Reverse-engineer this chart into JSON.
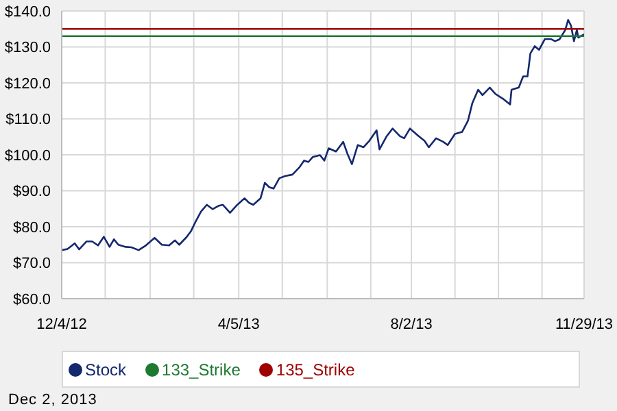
{
  "chart_data": {
    "type": "line",
    "x": [
      "2012-12-04",
      "2012-12-08",
      "2012-12-13",
      "2012-12-16",
      "2012-12-21",
      "2012-12-25",
      "2012-12-29",
      "2013-01-02",
      "2013-01-06",
      "2013-01-09",
      "2013-01-12",
      "2013-01-17",
      "2013-01-21",
      "2013-01-26",
      "2013-01-31",
      "2013-02-06",
      "2013-02-11",
      "2013-02-16",
      "2013-02-20",
      "2013-02-23",
      "2013-02-28",
      "2013-03-03",
      "2013-03-06",
      "2013-03-10",
      "2013-03-14",
      "2013-03-18",
      "2013-03-22",
      "2013-03-25",
      "2013-03-30",
      "2013-04-04",
      "2013-04-09",
      "2013-04-12",
      "2013-04-15",
      "2013-04-20",
      "2013-04-23",
      "2013-04-26",
      "2013-04-29",
      "2013-05-03",
      "2013-05-07",
      "2013-05-12",
      "2013-05-17",
      "2013-05-20",
      "2013-05-23",
      "2013-05-26",
      "2013-05-31",
      "2013-06-03",
      "2013-06-06",
      "2013-06-11",
      "2013-06-16",
      "2013-06-19",
      "2013-06-22",
      "2013-06-26",
      "2013-06-30",
      "2013-07-04",
      "2013-07-09",
      "2013-07-11",
      "2013-07-16",
      "2013-07-20",
      "2013-07-25",
      "2013-07-28",
      "2013-08-01",
      "2013-08-07",
      "2013-08-11",
      "2013-08-14",
      "2013-08-19",
      "2013-08-24",
      "2013-08-27",
      "2013-09-01",
      "2013-09-06",
      "2013-09-10",
      "2013-09-13",
      "2013-09-17",
      "2013-09-20",
      "2013-09-25",
      "2013-09-29",
      "2013-10-04",
      "2013-10-09",
      "2013-10-10",
      "2013-10-15",
      "2013-10-18",
      "2013-10-21",
      "2013-10-23",
      "2013-10-26",
      "2013-10-29",
      "2013-11-02",
      "2013-11-06",
      "2013-11-09",
      "2013-11-12",
      "2013-11-16",
      "2013-11-18",
      "2013-11-20",
      "2013-11-22",
      "2013-11-24",
      "2013-11-25",
      "2013-11-29"
    ],
    "series": [
      {
        "name": "Stock",
        "color": "#14286e",
        "values": [
          73.5,
          73.8,
          75.4,
          73.7,
          75.9,
          75.9,
          74.8,
          77.2,
          74.4,
          76.5,
          75.0,
          74.4,
          74.3,
          73.5,
          74.8,
          76.9,
          75.0,
          74.8,
          76.2,
          75.0,
          77.1,
          78.7,
          81.2,
          84.2,
          86.1,
          84.9,
          85.8,
          86.1,
          83.9,
          86.1,
          87.9,
          86.7,
          86.1,
          87.9,
          92.2,
          91.0,
          90.6,
          93.5,
          94.1,
          94.5,
          96.6,
          98.4,
          98.0,
          99.4,
          99.9,
          98.4,
          101.8,
          100.9,
          103.6,
          100.2,
          97.4,
          102.7,
          102.1,
          103.9,
          106.8,
          101.5,
          105.2,
          107.3,
          105.2,
          104.6,
          107.3,
          105.2,
          103.9,
          102.1,
          104.6,
          103.6,
          102.7,
          105.8,
          106.4,
          109.5,
          114.4,
          118.1,
          116.6,
          118.7,
          116.9,
          115.6,
          114.0,
          118.1,
          118.7,
          121.8,
          121.8,
          128.2,
          130.2,
          129.2,
          132.2,
          132.2,
          131.6,
          132.1,
          134.7,
          137.5,
          135.9,
          131.6,
          134.7,
          132.6,
          133.5
        ]
      },
      {
        "name": "133_Strike",
        "color": "#1e7a30",
        "x": [
          "2012-12-04",
          "2013-11-29"
        ],
        "values": [
          133,
          133
        ]
      },
      {
        "name": "135_Strike",
        "color": "#a00000",
        "x": [
          "2012-12-04",
          "2013-11-29"
        ],
        "values": [
          135,
          135
        ]
      }
    ],
    "xlim": [
      "2012-12-04",
      "2013-11-29"
    ],
    "xticks": [
      {
        "value": "2012-12-04",
        "label": "12/4/12"
      },
      {
        "value": "2013-01-03",
        "label": null
      },
      {
        "value": "2013-02-03",
        "label": null
      },
      {
        "value": "2013-03-05",
        "label": null
      },
      {
        "value": "2013-04-05",
        "label": "4/5/13"
      },
      {
        "value": "2013-05-05",
        "label": null
      },
      {
        "value": "2013-06-05",
        "label": null
      },
      {
        "value": "2013-07-05",
        "label": null
      },
      {
        "value": "2013-08-02",
        "label": "8/2/13"
      },
      {
        "value": "2013-09-01",
        "label": null
      },
      {
        "value": "2013-10-01",
        "label": null
      },
      {
        "value": "2013-10-31",
        "label": null
      },
      {
        "value": "2013-11-29",
        "label": "11/29/13"
      }
    ],
    "ylim": [
      60,
      140
    ],
    "yticks": [
      {
        "value": 60,
        "label": "$60.0"
      },
      {
        "value": 70,
        "label": "$70.0"
      },
      {
        "value": 80,
        "label": "$80.0"
      },
      {
        "value": 90,
        "label": "$90.0"
      },
      {
        "value": 100,
        "label": "$100.0"
      },
      {
        "value": 110,
        "label": "$110.0"
      },
      {
        "value": 120,
        "label": "$120.0"
      },
      {
        "value": 130,
        "label": "$130.0"
      },
      {
        "value": 140,
        "label": "$140.0"
      }
    ],
    "grid": true,
    "legend": "bottom",
    "marker": "none",
    "line_style": "solid",
    "annotations": [
      "Dec 2, 2013"
    ]
  }
}
